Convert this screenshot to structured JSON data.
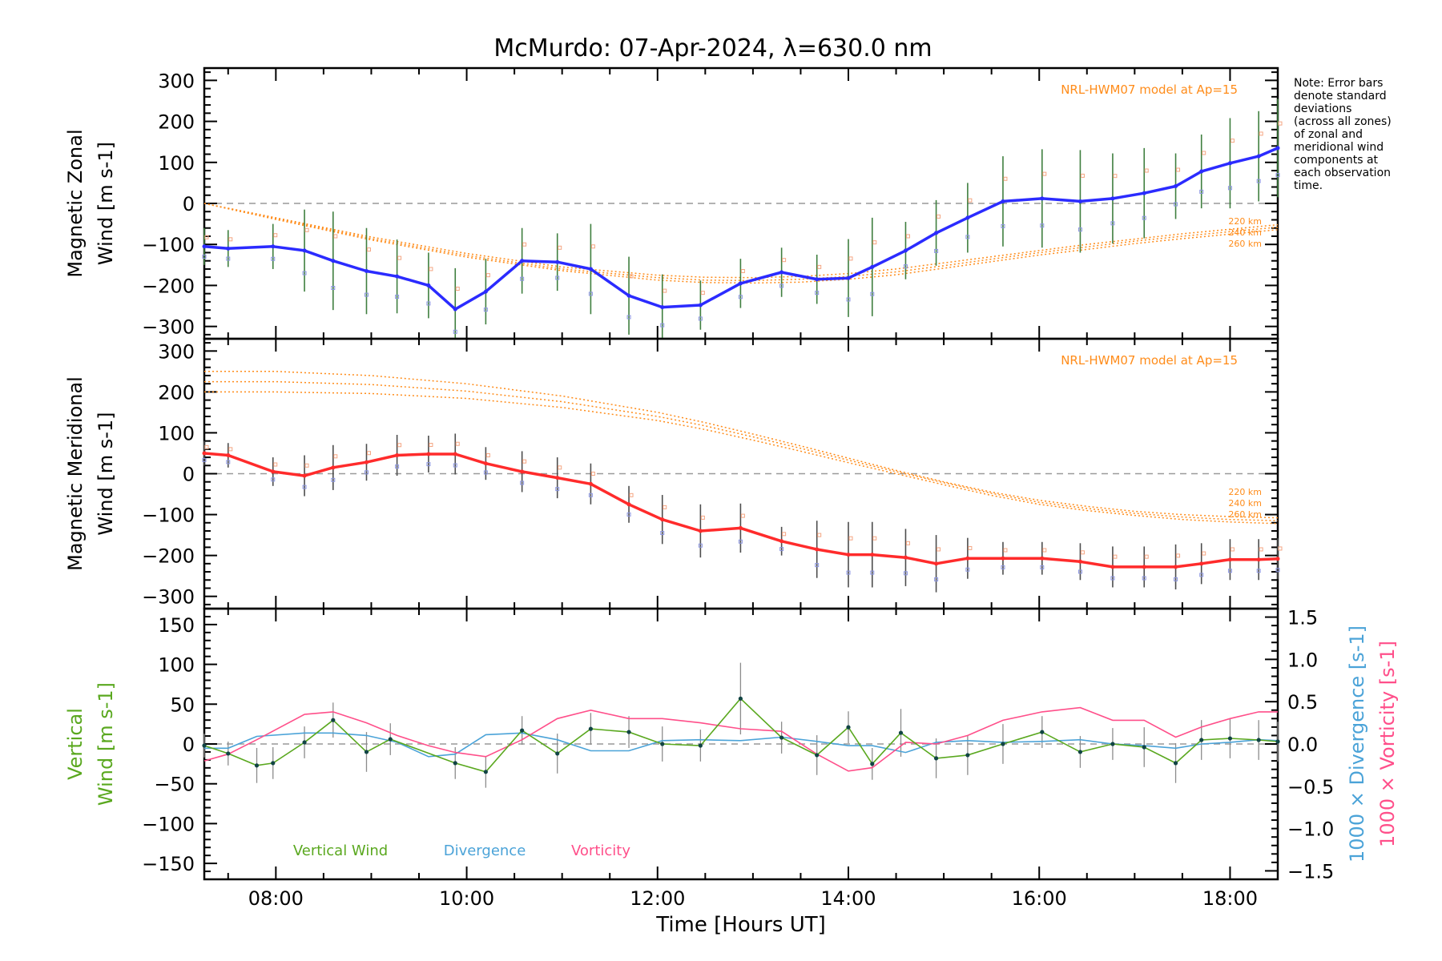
{
  "title": "McMurdo: 07-Apr-2024, λ=630.0 nm",
  "xlabel": "Time [Hours UT]",
  "note": [
    "Note: Error bars",
    "denote standard",
    "deviations",
    "(across all zones)",
    "of zonal and",
    "meridional wind",
    "components at",
    "each observation",
    "time."
  ],
  "model_label": "NRL-HWM07 model at Ap=15",
  "altitude_labels": [
    "220 km",
    "240 km",
    "260 km"
  ],
  "colors": {
    "zonal": "#2b2bff",
    "meridional": "#ff2b2b",
    "vertical": "#5aa81f",
    "divergence": "#4ba3d8",
    "vorticity": "#ff4f8a",
    "model": "#ff8c1a",
    "errorbar_zonal": "#3f7f3f",
    "errorbar_grey": "#8c8c8c"
  },
  "chart_data": [
    {
      "type": "line",
      "panel": "zonal",
      "ylabel": [
        "Magnetic Zonal",
        "Wind [m s-1]"
      ],
      "xlim": [
        7.25,
        18.5
      ],
      "ylim": [
        -330,
        330
      ],
      "xticks": [
        "08:00",
        "10:00",
        "12:00",
        "14:00",
        "16:00",
        "18:00"
      ],
      "yticks": [
        300,
        200,
        100,
        0,
        -100,
        -200,
        -300
      ],
      "series": [
        {
          "x": [
            7.25,
            7.5,
            7.97,
            8.3,
            8.6,
            8.95,
            9.27,
            9.6,
            9.88,
            10.2,
            10.58,
            10.95,
            11.3,
            11.7,
            12.05,
            12.45,
            12.87,
            13.3,
            13.67,
            14.0,
            14.25,
            14.6,
            14.92,
            15.25,
            15.62,
            16.03,
            16.43,
            16.77,
            17.1,
            17.43,
            17.7,
            18.0,
            18.3,
            18.5
          ],
          "y": [
            -105,
            -110,
            -105,
            -115,
            -140,
            -165,
            -178,
            -200,
            -258,
            -215,
            -140,
            -143,
            -160,
            -225,
            -253,
            -248,
            -195,
            -168,
            -185,
            -182,
            -155,
            -115,
            -72,
            -35,
            5,
            12,
            5,
            12,
            25,
            42,
            78,
            98,
            115,
            135
          ],
          "err": [
            45,
            45,
            55,
            100,
            120,
            105,
            90,
            80,
            100,
            80,
            80,
            70,
            110,
            95,
            80,
            60,
            60,
            60,
            60,
            95,
            120,
            70,
            80,
            85,
            110,
            120,
            125,
            110,
            110,
            80,
            90,
            110,
            110,
            120
          ]
        }
      ],
      "model": {
        "label": "NRL-HWM07 model at Ap=15",
        "x": [
          7.25,
          8,
          9,
          10,
          11,
          12,
          12.5,
          13,
          13.5,
          14,
          14.5,
          15,
          15.5,
          16,
          16.5,
          17,
          17.5,
          18,
          18.5
        ],
        "series": [
          {
            "name": "220 km",
            "y": [
              0,
              -35,
              -82,
              -122,
              -155,
              -175,
              -180,
              -181,
              -178,
              -171,
              -160,
              -145,
              -130,
              -115,
              -100,
              -87,
              -74,
              -63,
              -52
            ]
          },
          {
            "name": "240 km",
            "y": [
              0,
              -37,
              -86,
              -127,
              -160,
              -181,
              -187,
              -188,
              -185,
              -178,
              -167,
              -152,
              -136,
              -120,
              -106,
              -92,
              -80,
              -69,
              -58
            ]
          },
          {
            "name": "260 km",
            "y": [
              0,
              -39,
              -89,
              -131,
              -164,
              -187,
              -193,
              -194,
              -192,
              -185,
              -174,
              -158,
              -142,
              -126,
              -112,
              -98,
              -86,
              -75,
              -64
            ]
          }
        ]
      }
    },
    {
      "type": "line",
      "panel": "meridional",
      "ylabel": [
        "Magnetic Meridional",
        "Wind [m s-1]"
      ],
      "xlim": [
        7.25,
        18.5
      ],
      "ylim": [
        -330,
        330
      ],
      "yticks": [
        300,
        200,
        100,
        0,
        -100,
        -200,
        -300
      ],
      "series": [
        {
          "x": [
            7.25,
            7.5,
            7.97,
            8.3,
            8.6,
            8.95,
            9.27,
            9.6,
            9.88,
            10.2,
            10.58,
            10.95,
            11.3,
            11.7,
            12.05,
            12.45,
            12.87,
            13.3,
            13.67,
            14.0,
            14.25,
            14.6,
            14.92,
            15.25,
            15.62,
            16.03,
            16.43,
            16.77,
            17.1,
            17.43,
            17.7,
            18.0,
            18.3,
            18.5
          ],
          "y": [
            50,
            45,
            5,
            -5,
            15,
            28,
            45,
            48,
            48,
            25,
            5,
            -10,
            -25,
            -75,
            -112,
            -140,
            -133,
            -165,
            -185,
            -198,
            -198,
            -205,
            -220,
            -207,
            -207,
            -207,
            -215,
            -228,
            -228,
            -228,
            -220,
            -210,
            -210,
            -208
          ],
          "err": [
            30,
            30,
            35,
            50,
            55,
            45,
            50,
            45,
            50,
            40,
            50,
            50,
            50,
            45,
            60,
            65,
            60,
            35,
            70,
            80,
            80,
            70,
            70,
            50,
            40,
            40,
            45,
            50,
            50,
            55,
            50,
            50,
            50,
            50
          ]
        }
      ],
      "model": {
        "label": "NRL-HWM07 model at Ap=15",
        "x": [
          7.25,
          8,
          9,
          10,
          11,
          12,
          12.5,
          13,
          13.5,
          14,
          14.5,
          15,
          15.5,
          16,
          16.5,
          17,
          17.5,
          18,
          18.5
        ],
        "series": [
          {
            "name": "220 km",
            "y": [
              250,
              250,
              240,
              220,
              190,
              150,
              125,
              97,
              68,
              38,
              8,
              -20,
              -45,
              -65,
              -80,
              -92,
              -100,
              -105,
              -108
            ]
          },
          {
            "name": "240 km",
            "y": [
              225,
              225,
              218,
              202,
              176,
              140,
              117,
              90,
              62,
              33,
              5,
              -22,
              -48,
              -70,
              -85,
              -97,
              -106,
              -112,
              -115
            ]
          },
          {
            "name": "260 km",
            "y": [
              200,
              200,
              196,
              184,
              162,
              130,
              108,
              82,
              55,
              27,
              0,
              -27,
              -53,
              -75,
              -90,
              -102,
              -112,
              -118,
              -122
            ]
          }
        ]
      }
    },
    {
      "type": "line",
      "panel": "vertical",
      "ylabel": [
        "Vertical",
        "Wind [m s-1]"
      ],
      "ylabel_right": [
        "1000 × Divergence [s-1]",
        "1000 × Vorticity [s-1]"
      ],
      "xlim": [
        7.25,
        18.5
      ],
      "ylim": [
        -170,
        170
      ],
      "ylim_right": [
        -1.6,
        1.6
      ],
      "yticks": [
        150,
        100,
        50,
        0,
        -50,
        -100,
        -150
      ],
      "yticks_right": [
        "1.5",
        "1.0",
        "0.5",
        "0.0",
        "−0.5",
        "−1.0",
        "−1.5"
      ],
      "legend": [
        "Vertical Wind",
        "Divergence",
        "Vorticity"
      ],
      "series": [
        {
          "name": "Vertical Wind",
          "axis": "left",
          "x": [
            7.25,
            7.5,
            7.8,
            7.97,
            8.3,
            8.6,
            8.95,
            9.2,
            9.88,
            10.2,
            10.58,
            10.95,
            11.3,
            11.7,
            12.05,
            12.45,
            12.87,
            13.3,
            13.67,
            14.0,
            14.25,
            14.55,
            14.92,
            15.25,
            15.62,
            16.03,
            16.43,
            16.77,
            17.1,
            17.43,
            17.7,
            18.0,
            18.3,
            18.5
          ],
          "y": [
            -2,
            -12,
            -27,
            -24,
            2,
            30,
            -10,
            6,
            -24,
            -35,
            17,
            -12,
            19,
            15,
            0,
            -2,
            57,
            8,
            -14,
            21,
            -25,
            14,
            -18,
            -14,
            0,
            15,
            -10,
            0,
            -4,
            -24,
            5,
            7,
            5,
            3
          ],
          "err": [
            15,
            15,
            22,
            20,
            20,
            22,
            25,
            20,
            20,
            20,
            18,
            25,
            20,
            20,
            22,
            20,
            45,
            20,
            25,
            20,
            20,
            30,
            25,
            25,
            25,
            20,
            20,
            20,
            25,
            25,
            25,
            25,
            25,
            25
          ]
        },
        {
          "name": "Divergence",
          "axis": "right",
          "x": [
            7.25,
            7.5,
            7.8,
            8.3,
            8.6,
            8.95,
            9.27,
            9.6,
            9.88,
            10.2,
            10.58,
            10.95,
            11.3,
            11.7,
            12.05,
            12.45,
            12.87,
            13.3,
            13.67,
            14.0,
            14.25,
            14.6,
            14.92,
            15.25,
            15.62,
            16.03,
            16.43,
            16.77,
            17.1,
            17.43,
            17.7,
            18.0,
            18.3,
            18.5
          ],
          "y": [
            -0.05,
            -0.05,
            0.09,
            0.13,
            0.13,
            0.1,
            0.02,
            -0.15,
            -0.12,
            0.11,
            0.13,
            0.05,
            -0.08,
            -0.08,
            0.04,
            0.05,
            0.04,
            0.08,
            0.03,
            -0.02,
            -0.02,
            -0.1,
            0.02,
            0.04,
            0.02,
            0.03,
            0.05,
            0.0,
            -0.02,
            -0.05,
            0.0,
            0.02,
            0.05,
            0.04
          ]
        },
        {
          "name": "Vorticity",
          "axis": "right",
          "x": [
            7.25,
            7.5,
            7.8,
            8.3,
            8.6,
            8.95,
            9.27,
            9.6,
            9.88,
            10.2,
            10.58,
            10.95,
            11.3,
            11.7,
            12.05,
            12.45,
            12.87,
            13.3,
            13.67,
            14.0,
            14.25,
            14.6,
            14.92,
            15.25,
            15.62,
            16.03,
            16.43,
            16.77,
            17.1,
            17.43,
            17.7,
            18.0,
            18.3,
            18.5
          ],
          "y": [
            -0.2,
            -0.12,
            0.05,
            0.35,
            0.38,
            0.25,
            0.1,
            -0.02,
            -0.1,
            -0.15,
            0.05,
            0.3,
            0.4,
            0.3,
            0.3,
            0.25,
            0.18,
            0.15,
            -0.12,
            -0.32,
            -0.28,
            0.02,
            0.0,
            0.1,
            0.28,
            0.38,
            0.43,
            0.28,
            0.28,
            0.08,
            0.2,
            0.3,
            0.38,
            0.38
          ]
        }
      ]
    }
  ]
}
